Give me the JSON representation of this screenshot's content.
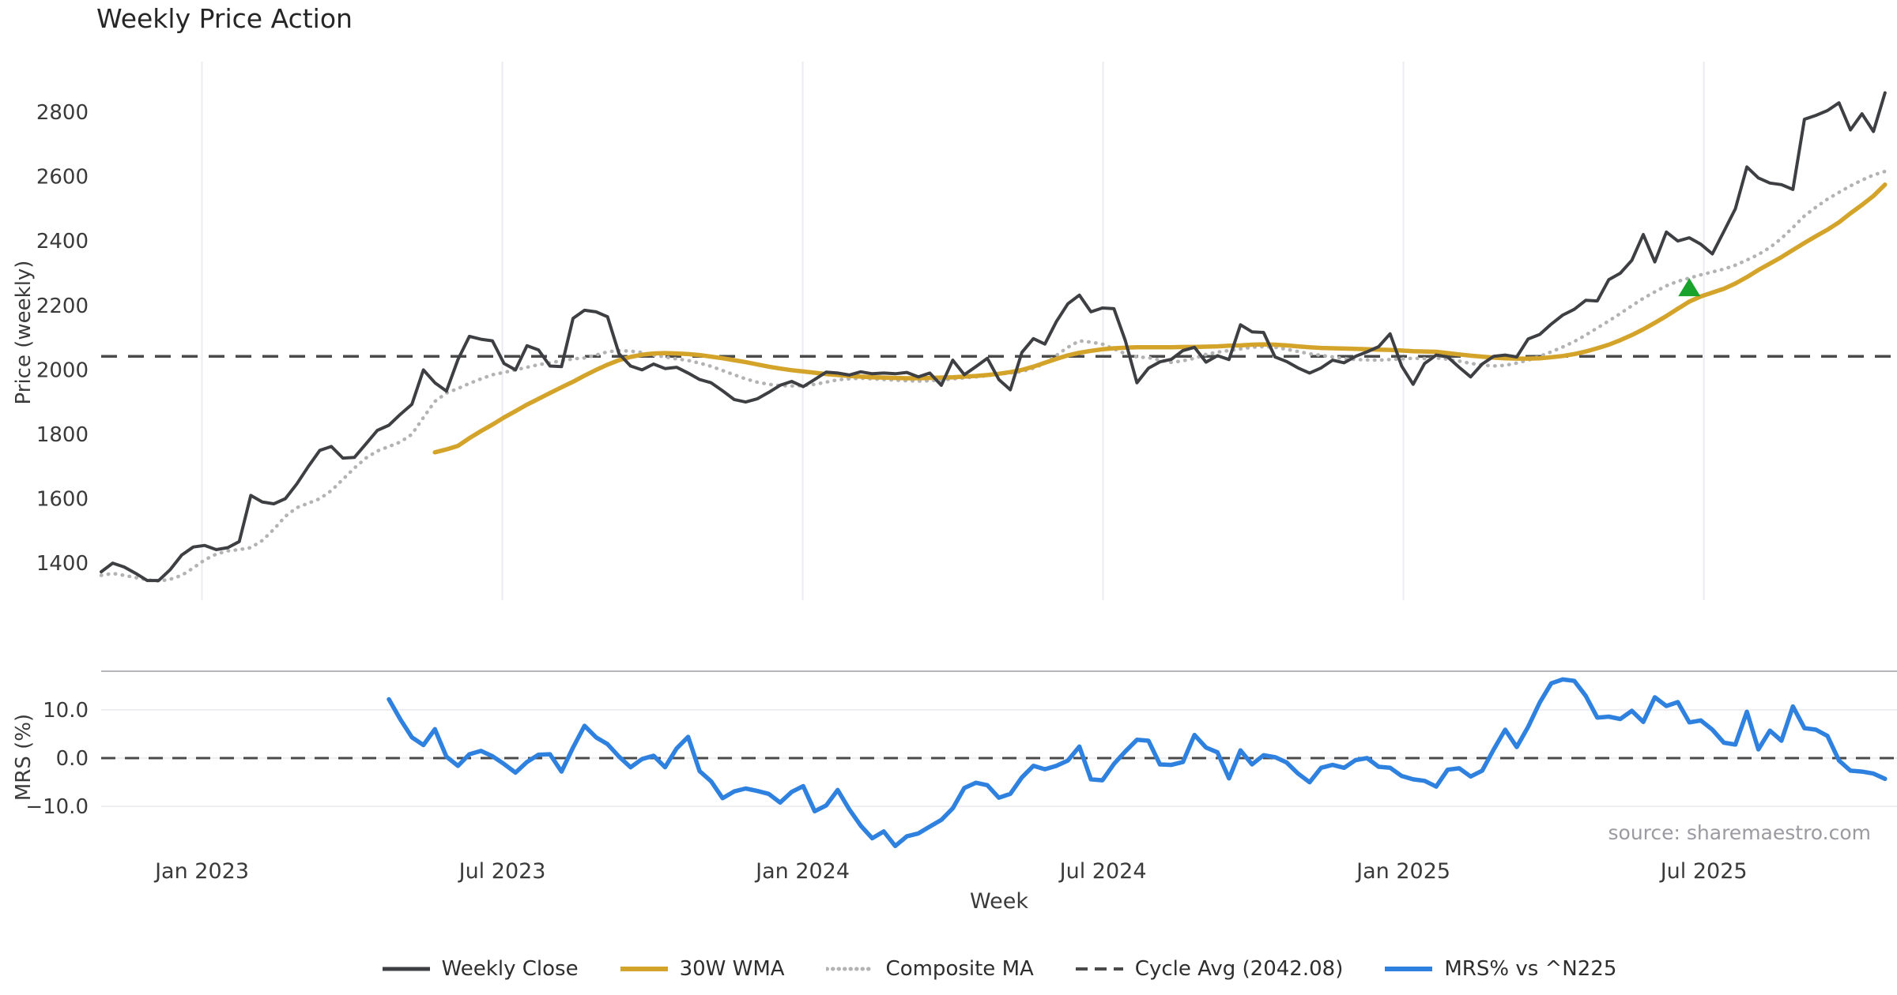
{
  "title": "Weekly Price Action",
  "source": "source: sharemaestro.com",
  "axes": {
    "price": {
      "label": "Price (weekly)",
      "tick_labels": [
        "1400",
        "1600",
        "1800",
        "2000",
        "2200",
        "2400",
        "2600",
        "2800"
      ]
    },
    "mrs": {
      "label": "MRS (%)",
      "tick_labels": [
        "10.0",
        "0.0",
        "−10.0"
      ]
    },
    "x": {
      "label": "Week",
      "tick_labels": [
        "Jan 2023",
        "Jul 2023",
        "Jan 2024",
        "Jul 2024",
        "Jan 2025",
        "Jul 2025"
      ]
    }
  },
  "legend": [
    {
      "label": "Weekly Close",
      "color": "#3d3f42",
      "style": "solid",
      "width": 5
    },
    {
      "label": "30W WMA",
      "color": "#d4a42a",
      "style": "solid",
      "width": 6
    },
    {
      "label": "Composite MA",
      "color": "#b3b3b3",
      "style": "dotted",
      "width": 5
    },
    {
      "label": "Cycle Avg (2042.08)",
      "color": "#4a4a4a",
      "style": "dashed",
      "width": 4
    },
    {
      "label": "MRS% vs ^N225",
      "color": "#2f81df",
      "style": "solid",
      "width": 6
    }
  ],
  "chart_data": {
    "type": "line",
    "x_unit": "week_index",
    "weeks_total": 156,
    "x_ticks": {
      "labels": [
        "Jan 2023",
        "Jul 2023",
        "Jan 2024",
        "Jul 2024",
        "Jan 2025",
        "Jul 2025"
      ],
      "week_positions": [
        8.76,
        34.86,
        60.96,
        87.06,
        113.16,
        139.26
      ]
    },
    "panels": [
      {
        "id": "price",
        "ylabel": "Price (weekly)",
        "ylim": [
          1285,
          2957
        ],
        "yticks": [
          1400,
          1600,
          1800,
          2000,
          2200,
          2400,
          2600,
          2800
        ],
        "grid": "vertical",
        "cycle_avg": 2042.08,
        "marker": {
          "shape": "triangle-up",
          "color": "#1aa32c",
          "week": 138,
          "price": 2253
        },
        "series": [
          {
            "name": "Weekly Close",
            "color": "#3d3f42",
            "style": "solid",
            "line_width": 4,
            "start_week": 0,
            "values": [
              1373,
              1400,
              1388,
              1368,
              1346,
              1346,
              1380,
              1425,
              1450,
              1455,
              1442,
              1448,
              1467,
              1610,
              1590,
              1584,
              1600,
              1646,
              1700,
              1750,
              1762,
              1726,
              1728,
              1770,
              1812,
              1828,
              1862,
              1893,
              2000,
              1960,
              1934,
              2032,
              2104,
              2095,
              2090,
              2020,
              2000,
              2075,
              2062,
              2012,
              2010,
              2160,
              2185,
              2180,
              2165,
              2050,
              2012,
              2000,
              2018,
              2004,
              2008,
              1990,
              1970,
              1960,
              1935,
              1908,
              1900,
              1910,
              1930,
              1952,
              1964,
              1948,
              1970,
              1993,
              1990,
              1984,
              1994,
              1988,
              1990,
              1988,
              1992,
              1978,
              1990,
              1952,
              2030,
              1985,
              2010,
              2036,
              1970,
              1938,
              2054,
              2097,
              2080,
              2150,
              2205,
              2232,
              2180,
              2192,
              2190,
              2090,
              1960,
              2005,
              2025,
              2033,
              2060,
              2070,
              2024,
              2044,
              2032,
              2140,
              2118,
              2116,
              2040,
              2026,
              2006,
              1990,
              2006,
              2030,
              2022,
              2042,
              2056,
              2072,
              2112,
              2012,
              1955,
              2020,
              2046,
              2040,
              2008,
              1978,
              2018,
              2042,
              2046,
              2040,
              2096,
              2110,
              2142,
              2170,
              2188,
              2216,
              2214,
              2280,
              2300,
              2340,
              2420,
              2335,
              2428,
              2400,
              2410,
              2390,
              2360,
              2430,
              2500,
              2630,
              2596,
              2580,
              2575,
              2560,
              2778,
              2790,
              2805,
              2829,
              2745,
              2795,
              2740,
              2860
            ]
          },
          {
            "name": "30W WMA",
            "color": "#d4a42a",
            "style": "solid",
            "line_width": 5.5,
            "start_week": 29,
            "values": [
              1744,
              1753,
              1764,
              1788,
              1810,
              1830,
              1852,
              1872,
              1892,
              1910,
              1928,
              1946,
              1963,
              1982,
              2000,
              2016,
              2030,
              2040,
              2047,
              2051,
              2052,
              2051,
              2049,
              2046,
              2041,
              2036,
              2030,
              2024,
              2017,
              2010,
              2004,
              1999,
              1995,
              1991,
              1987,
              1984,
              1981,
              1979,
              1977,
              1976,
              1975,
              1974,
              1974,
              1975,
              1976,
              1977,
              1979,
              1981,
              1984,
              1988,
              1993,
              2000,
              2010,
              2022,
              2034,
              2045,
              2053,
              2059,
              2064,
              2067,
              2069,
              2070,
              2070,
              2070,
              2070,
              2071,
              2071,
              2072,
              2073,
              2075,
              2076,
              2078,
              2079,
              2078,
              2076,
              2073,
              2070,
              2068,
              2067,
              2066,
              2065,
              2064,
              2063,
              2062,
              2060,
              2058,
              2057,
              2056,
              2052,
              2048,
              2044,
              2041,
              2038,
              2036,
              2035,
              2035,
              2036,
              2039,
              2043,
              2049,
              2057,
              2067,
              2078,
              2092,
              2108,
              2126,
              2146,
              2167,
              2190,
              2212,
              2228,
              2240,
              2252,
              2268,
              2288,
              2310,
              2330,
              2350,
              2372,
              2394,
              2415,
              2435,
              2458,
              2486,
              2512,
              2540,
              2575
            ]
          },
          {
            "name": "Composite MA",
            "color": "#b3b3b3",
            "style": "dotted",
            "line_width": 4.5,
            "start_week": 0,
            "values": [
              1362,
              1368,
              1362,
              1355,
              1348,
              1344,
              1350,
              1362,
              1385,
              1410,
              1428,
              1438,
              1442,
              1448,
              1470,
              1505,
              1545,
              1572,
              1586,
              1600,
              1625,
              1660,
              1695,
              1726,
              1748,
              1762,
              1776,
              1800,
              1852,
              1902,
              1928,
              1942,
              1958,
              1972,
              1985,
              1992,
              2000,
              2008,
              2016,
              2022,
              2028,
              2034,
              2037,
              2046,
              2056,
              2060,
              2058,
              2054,
              2046,
              2040,
              2034,
              2029,
              2021,
              2011,
              1998,
              1985,
              1972,
              1962,
              1955,
              1951,
              1950,
              1951,
              1955,
              1962,
              1969,
              1972,
              1974,
              1972,
              1970,
              1968,
              1966,
              1965,
              1966,
              1968,
              1972,
              1975,
              1978,
              1982,
              1987,
              1990,
              1995,
              2005,
              2020,
              2045,
              2070,
              2090,
              2086,
              2080,
              2065,
              2050,
              2040,
              2038,
              2030,
              2023,
              2028,
              2036,
              2048,
              2055,
              2060,
              2065,
              2070,
              2072,
              2070,
              2064,
              2057,
              2050,
              2045,
              2040,
              2035,
              2032,
              2031,
              2030,
              2032,
              2034,
              2036,
              2035,
              2037,
              2033,
              2027,
              2020,
              2015,
              2012,
              2014,
              2021,
              2030,
              2042,
              2056,
              2071,
              2088,
              2108,
              2130,
              2152,
              2175,
              2199,
              2222,
              2242,
              2261,
              2275,
              2285,
              2295,
              2304,
              2313,
              2325,
              2341,
              2358,
              2380,
              2408,
              2442,
              2478,
              2505,
              2530,
              2551,
              2571,
              2589,
              2605,
              2616
            ]
          },
          {
            "name": "Cycle Avg (2042.08)",
            "color": "#4a4a4a",
            "style": "dashed",
            "line_width": 3.5,
            "value": 2042.08
          }
        ]
      },
      {
        "id": "mrs",
        "ylabel": "MRS (%)",
        "ylim": [
          -19.3,
          18.0
        ],
        "yticks": [
          10.0,
          0.0,
          -10.0
        ],
        "grid": "horizontal",
        "zero_line": 0.0,
        "series": [
          {
            "name": "MRS% vs ^N225",
            "color": "#2f81df",
            "style": "solid",
            "line_width": 5.5,
            "start_week": 25,
            "values": [
              12.2,
              8.0,
              4.3,
              2.7,
              6.0,
              0.3,
              -1.6,
              0.8,
              1.5,
              0.4,
              -1.2,
              -3.0,
              -0.8,
              0.7,
              0.8,
              -2.8,
              2.2,
              6.7,
              4.3,
              2.9,
              0.3,
              -1.9,
              -0.2,
              0.5,
              -1.9,
              2.0,
              4.4,
              -2.7,
              -4.8,
              -8.3,
              -6.9,
              -6.3,
              -6.8,
              -7.4,
              -9.2,
              -7.0,
              -5.8,
              -11.0,
              -9.8,
              -6.6,
              -10.6,
              -14.0,
              -16.6,
              -15.2,
              -18.2,
              -16.2,
              -15.6,
              -14.2,
              -12.8,
              -10.4,
              -6.2,
              -5.1,
              -5.6,
              -8.2,
              -7.4,
              -4.0,
              -1.6,
              -2.3,
              -1.6,
              -0.5,
              2.4,
              -4.4,
              -4.6,
              -1.2,
              1.4,
              3.8,
              3.6,
              -1.3,
              -1.4,
              -0.8,
              4.8,
              2.2,
              1.2,
              -4.2,
              1.6,
              -1.3,
              0.6,
              0.2,
              -0.9,
              -3.2,
              -5.0,
              -2.0,
              -1.4,
              -2.0,
              -0.4,
              0.0,
              -1.8,
              -2.0,
              -3.7,
              -4.4,
              -4.7,
              -5.9,
              -2.4,
              -2.1,
              -3.8,
              -2.6,
              1.8,
              5.9,
              2.3,
              6.5,
              11.5,
              15.5,
              16.3,
              16.0,
              12.9,
              8.4,
              8.6,
              8.1,
              9.8,
              7.5,
              12.6,
              10.8,
              11.6,
              7.4,
              7.8,
              5.9,
              3.2,
              2.8,
              9.6,
              1.8,
              5.7,
              3.6,
              10.7,
              6.2,
              5.9,
              4.6,
              -0.5,
              -2.6,
              -2.8,
              -3.2,
              -4.3
            ]
          }
        ]
      }
    ]
  }
}
